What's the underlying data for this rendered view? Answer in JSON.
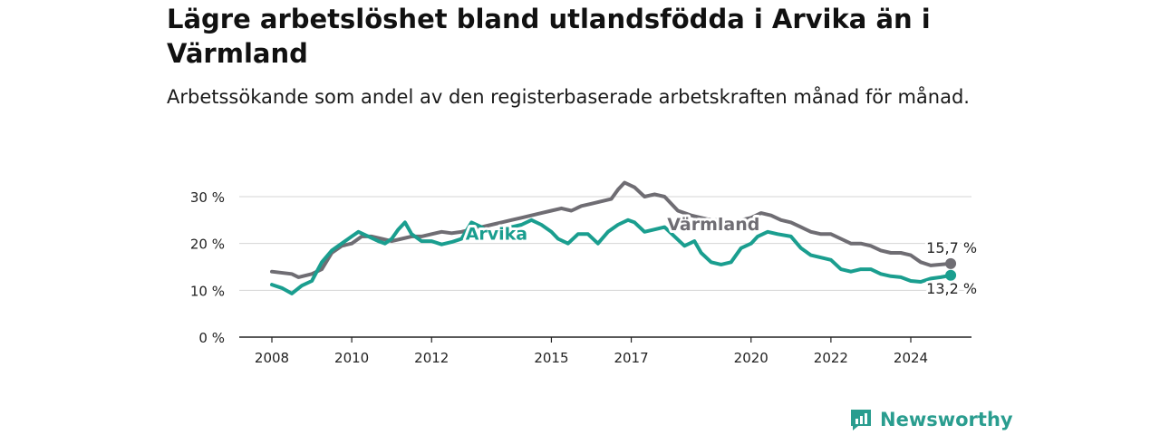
{
  "header": {
    "title": "Lägre arbetslöshet bland utlandsfödda i Arvika än i Värmland",
    "subtitle": "Arbetssökande som andel av den registerbaserade arbetskraften månad för månad."
  },
  "brand": {
    "name": "Newsworthy",
    "color": "#2a9d8f"
  },
  "chart_data": {
    "type": "line",
    "title": "Lägre arbetslöshet bland utlandsfödda i Arvika än i Värmland",
    "subtitle": "Arbetssökande som andel av den registerbaserade arbetskraften månad för månad.",
    "xlabel": "",
    "ylabel": "",
    "x_ticks": [
      "2008",
      "2010",
      "2012",
      "2015",
      "2017",
      "2020",
      "2022",
      "2024"
    ],
    "y_ticks": [
      "0 %",
      "10 %",
      "20 %",
      "30 %"
    ],
    "ylim": [
      0,
      33
    ],
    "grid": true,
    "series": [
      {
        "name": "Värmland",
        "color": "#6f6d73",
        "end_label": "15,7 %",
        "points": [
          [
            "2008-01",
            14.0
          ],
          [
            "2008-07",
            13.5
          ],
          [
            "2008-09",
            12.8
          ],
          [
            "2009-01",
            13.5
          ],
          [
            "2009-04",
            14.5
          ],
          [
            "2009-07",
            18.0
          ],
          [
            "2009-10",
            19.5
          ],
          [
            "2010-01",
            20.0
          ],
          [
            "2010-04",
            21.5
          ],
          [
            "2010-07",
            21.5
          ],
          [
            "2010-10",
            21.0
          ],
          [
            "2011-01",
            20.5
          ],
          [
            "2011-04",
            21.0
          ],
          [
            "2011-07",
            21.5
          ],
          [
            "2011-10",
            21.5
          ],
          [
            "2012-01",
            22.0
          ],
          [
            "2012-04",
            22.5
          ],
          [
            "2012-07",
            22.2
          ],
          [
            "2012-10",
            22.5
          ],
          [
            "2013-01",
            23.0
          ],
          [
            "2013-04",
            23.5
          ],
          [
            "2013-07",
            24.0
          ],
          [
            "2013-10",
            24.5
          ],
          [
            "2014-01",
            25.0
          ],
          [
            "2014-04",
            25.5
          ],
          [
            "2014-07",
            26.0
          ],
          [
            "2014-10",
            26.5
          ],
          [
            "2015-01",
            27.0
          ],
          [
            "2015-04",
            27.5
          ],
          [
            "2015-07",
            27.0
          ],
          [
            "2015-10",
            28.0
          ],
          [
            "2016-01",
            28.5
          ],
          [
            "2016-04",
            29.0
          ],
          [
            "2016-07",
            29.5
          ],
          [
            "2016-09",
            31.5
          ],
          [
            "2016-11",
            33.0
          ],
          [
            "2017-02",
            32.0
          ],
          [
            "2017-05",
            30.0
          ],
          [
            "2017-08",
            30.5
          ],
          [
            "2017-11",
            30.0
          ],
          [
            "2018-03",
            27.0
          ],
          [
            "2018-07",
            26.0
          ],
          [
            "2018-10",
            25.5
          ],
          [
            "2019-01",
            25.0
          ],
          [
            "2019-04",
            25.0
          ],
          [
            "2019-07",
            24.5
          ],
          [
            "2019-10",
            25.0
          ],
          [
            "2020-01",
            25.5
          ],
          [
            "2020-04",
            26.5
          ],
          [
            "2020-07",
            26.0
          ],
          [
            "2020-10",
            25.0
          ],
          [
            "2021-01",
            24.5
          ],
          [
            "2021-04",
            23.5
          ],
          [
            "2021-07",
            22.5
          ],
          [
            "2021-10",
            22.0
          ],
          [
            "2022-01",
            22.0
          ],
          [
            "2022-04",
            21.0
          ],
          [
            "2022-07",
            20.0
          ],
          [
            "2022-10",
            20.0
          ],
          [
            "2023-01",
            19.5
          ],
          [
            "2023-04",
            18.5
          ],
          [
            "2023-07",
            18.0
          ],
          [
            "2023-10",
            18.0
          ],
          [
            "2024-01",
            17.5
          ],
          [
            "2024-04",
            16.0
          ],
          [
            "2024-07",
            15.3
          ],
          [
            "2024-10",
            15.5
          ],
          [
            "2025-01",
            15.7
          ]
        ]
      },
      {
        "name": "Arvika",
        "color": "#1a9e8f",
        "end_label": "13,2 %",
        "points": [
          [
            "2008-01",
            11.2
          ],
          [
            "2008-04",
            10.5
          ],
          [
            "2008-07",
            9.3
          ],
          [
            "2008-10",
            11.0
          ],
          [
            "2009-01",
            12.0
          ],
          [
            "2009-04",
            16.0
          ],
          [
            "2009-07",
            18.5
          ],
          [
            "2009-10",
            20.0
          ],
          [
            "2010-01",
            21.5
          ],
          [
            "2010-03",
            22.5
          ],
          [
            "2010-06",
            21.5
          ],
          [
            "2010-09",
            20.5
          ],
          [
            "2010-11",
            20.0
          ],
          [
            "2011-01",
            21.0
          ],
          [
            "2011-03",
            23.0
          ],
          [
            "2011-05",
            24.5
          ],
          [
            "2011-07",
            22.0
          ],
          [
            "2011-10",
            20.5
          ],
          [
            "2012-01",
            20.5
          ],
          [
            "2012-04",
            19.8
          ],
          [
            "2012-07",
            20.3
          ],
          [
            "2012-10",
            21.0
          ],
          [
            "2013-01",
            24.5
          ],
          [
            "2013-04",
            23.5
          ],
          [
            "2013-07",
            22.0
          ],
          [
            "2013-10",
            23.0
          ],
          [
            "2014-01",
            23.5
          ],
          [
            "2014-04",
            24.0
          ],
          [
            "2014-07",
            25.0
          ],
          [
            "2014-10",
            24.0
          ],
          [
            "2015-01",
            22.5
          ],
          [
            "2015-03",
            21.0
          ],
          [
            "2015-06",
            20.0
          ],
          [
            "2015-09",
            22.0
          ],
          [
            "2015-12",
            22.0
          ],
          [
            "2016-03",
            20.0
          ],
          [
            "2016-06",
            22.5
          ],
          [
            "2016-09",
            24.0
          ],
          [
            "2016-12",
            25.0
          ],
          [
            "2017-02",
            24.5
          ],
          [
            "2017-05",
            22.5
          ],
          [
            "2017-08",
            23.0
          ],
          [
            "2017-11",
            23.5
          ],
          [
            "2018-02",
            21.5
          ],
          [
            "2018-05",
            19.5
          ],
          [
            "2018-08",
            20.5
          ],
          [
            "2018-10",
            18.0
          ],
          [
            "2019-01",
            16.0
          ],
          [
            "2019-04",
            15.5
          ],
          [
            "2019-07",
            16.0
          ],
          [
            "2019-10",
            19.0
          ],
          [
            "2020-01",
            20.0
          ],
          [
            "2020-03",
            21.5
          ],
          [
            "2020-06",
            22.5
          ],
          [
            "2020-09",
            22.0
          ],
          [
            "2021-01",
            21.5
          ],
          [
            "2021-04",
            19.0
          ],
          [
            "2021-07",
            17.5
          ],
          [
            "2021-10",
            17.0
          ],
          [
            "2022-01",
            16.5
          ],
          [
            "2022-04",
            14.5
          ],
          [
            "2022-07",
            14.0
          ],
          [
            "2022-10",
            14.5
          ],
          [
            "2023-01",
            14.5
          ],
          [
            "2023-04",
            13.5
          ],
          [
            "2023-07",
            13.0
          ],
          [
            "2023-10",
            12.8
          ],
          [
            "2024-01",
            12.0
          ],
          [
            "2024-04",
            11.8
          ],
          [
            "2024-07",
            12.5
          ],
          [
            "2024-10",
            12.8
          ],
          [
            "2025-01",
            13.2
          ]
        ]
      }
    ]
  }
}
